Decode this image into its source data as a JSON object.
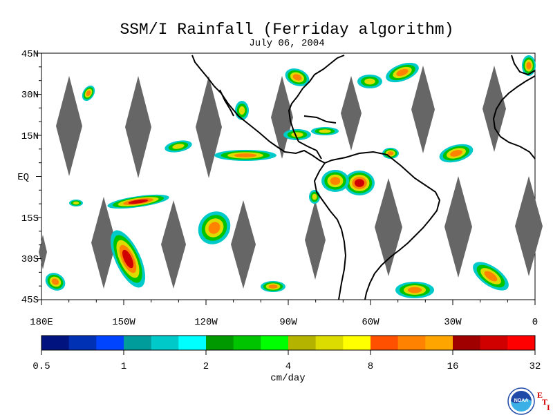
{
  "title": "SSM/I Rainfall (Ferriday algorithm)",
  "date": "July 06, 2004",
  "map": {
    "lat_labels": [
      "45N",
      "30N",
      "15N",
      "EQ",
      "15S",
      "30S",
      "45S"
    ],
    "lon_labels": [
      "180E",
      "150W",
      "120W",
      "90W",
      "60W",
      "30W",
      "0"
    ],
    "extent": {
      "lon": [
        -180,
        0
      ],
      "lat": [
        -45,
        45
      ]
    },
    "gap_color": "#666666",
    "coastline_color": "#000000"
  },
  "colorbar": {
    "unit": "cm/day",
    "tick_labels": [
      "0.5",
      "1",
      "2",
      "4",
      "8",
      "16",
      "32"
    ],
    "colors": [
      "#00137f",
      "#0030b4",
      "#0044ff",
      "#009b9b",
      "#00c9c9",
      "#00ffff",
      "#009900",
      "#00c400",
      "#00ff00",
      "#b4b400",
      "#dcdc00",
      "#ffff00",
      "#ff5000",
      "#ff8200",
      "#ffa500",
      "#a00000",
      "#d00000",
      "#ff0000"
    ]
  },
  "logo": {
    "text": "NOAA",
    "side_letters": [
      "E",
      "T",
      "I"
    ]
  }
}
